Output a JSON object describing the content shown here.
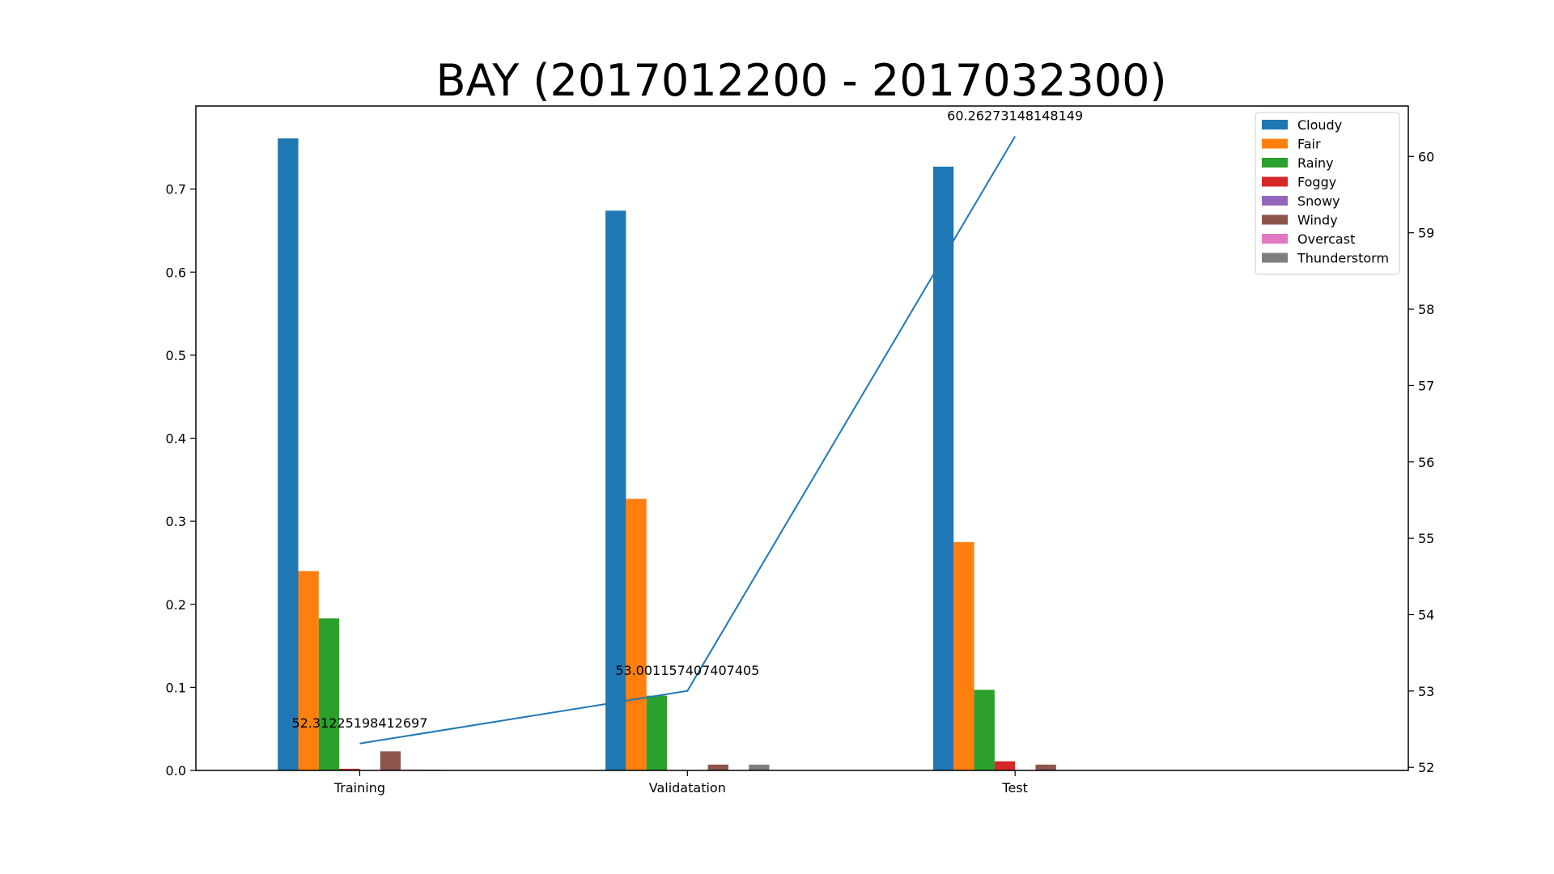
{
  "chart_data": {
    "type": "bar",
    "title": "BAY (2017012200 - 2017032300)",
    "categories": [
      "Training",
      "Validatation",
      "Test"
    ],
    "series": [
      {
        "name": "Cloudy",
        "color": "#1f77b4",
        "values": [
          0.761,
          0.674,
          0.727
        ]
      },
      {
        "name": "Fair",
        "color": "#ff7f0e",
        "values": [
          0.24,
          0.327,
          0.275
        ]
      },
      {
        "name": "Rainy",
        "color": "#2ca02c",
        "values": [
          0.183,
          0.09,
          0.097
        ]
      },
      {
        "name": "Foggy",
        "color": "#d62728",
        "values": [
          0.002,
          0.0,
          0.011
        ]
      },
      {
        "name": "Snowy",
        "color": "#9467bd",
        "values": [
          0.0,
          0.0,
          0.0
        ]
      },
      {
        "name": "Windy",
        "color": "#8c564b",
        "values": [
          0.023,
          0.007,
          0.007
        ]
      },
      {
        "name": "Overcast",
        "color": "#e377c2",
        "values": [
          0.001,
          0.0,
          0.0
        ]
      },
      {
        "name": "Thunderstorm",
        "color": "#7f7f7f",
        "values": [
          0.001,
          0.007,
          0.0
        ]
      }
    ],
    "ylim": [
      0,
      0.8
    ],
    "yticks": [
      "0.0",
      "0.1",
      "0.2",
      "0.3",
      "0.4",
      "0.5",
      "0.6",
      "0.7"
    ],
    "secondary_line": {
      "color": "#1f77b4",
      "values": [
        52.31225198412697,
        53.001157407407405,
        60.26273148148149
      ],
      "labels": [
        "52.31225198412697",
        "53.001157407407405",
        "60.26273148148149"
      ],
      "ylim": [
        51.96,
        60.66
      ],
      "yticks": [
        "52",
        "53",
        "54",
        "55",
        "56",
        "57",
        "58",
        "59",
        "60"
      ]
    },
    "legend_position": "top-right",
    "grid": false
  }
}
